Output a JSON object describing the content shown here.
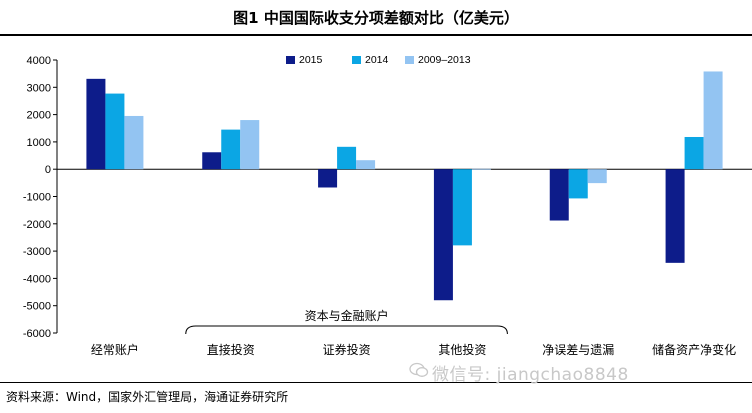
{
  "header": {
    "title": "图1   中国国际收支分项差额对比（亿美元）"
  },
  "source_note": "资料来源：Wind，国家外汇管理局，海通证券研究所",
  "watermark": "微信号: jiangchao8848",
  "chart_data": {
    "type": "bar",
    "title": "图1   中国国际收支分项差额对比（亿美元）",
    "categories": [
      "经常账户",
      "直接投资",
      "证券投资",
      "其他投资",
      "净误差与遗漏",
      "储备资产净变化"
    ],
    "group_label": {
      "text": "资本与金融账户",
      "spans": [
        "直接投资",
        "其他投资"
      ]
    },
    "series": [
      {
        "name": "2015",
        "color": "#0d1c8a",
        "values": [
          3310,
          620,
          -670,
          -4800,
          -1880,
          -3430
        ]
      },
      {
        "name": "2014",
        "color": "#0ba6e4",
        "values": [
          2770,
          1450,
          820,
          -2790,
          -1070,
          1180
        ]
      },
      {
        "name": "2009–2013",
        "color": "#93c4f2",
        "values": [
          1950,
          1800,
          330,
          0,
          -510,
          3580
        ]
      }
    ],
    "ylim": [
      -6000,
      4000
    ],
    "yticks": [
      4000,
      3000,
      2000,
      1000,
      0,
      -1000,
      -2000,
      -3000,
      -4000,
      -5000,
      -6000
    ],
    "ylabel": "",
    "xlabel": "",
    "legend_position": "top-center",
    "grid": false
  }
}
